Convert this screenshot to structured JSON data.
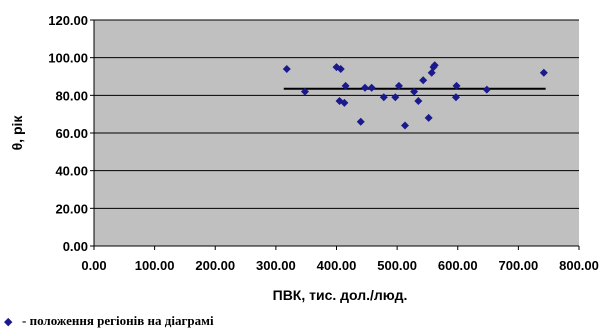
{
  "chart_data": {
    "type": "scatter",
    "title": "",
    "xlabel": "ПВК, тис. дол./люд.",
    "ylabel": "θ, рік",
    "xlim": [
      0,
      800
    ],
    "ylim": [
      0,
      120
    ],
    "xticks": [
      "0.00",
      "100.00",
      "200.00",
      "300.00",
      "400.00",
      "500.00",
      "600.00",
      "700.00",
      "800.00"
    ],
    "yticks": [
      "0.00",
      "20.00",
      "40.00",
      "60.00",
      "80.00",
      "100.00",
      "120.00"
    ],
    "grid": "horizontal",
    "marker_color": "#1a1a8c",
    "background_color": "#c0c0c0",
    "points": [
      {
        "x": 318,
        "y": 94
      },
      {
        "x": 348,
        "y": 82
      },
      {
        "x": 400,
        "y": 95
      },
      {
        "x": 405,
        "y": 77
      },
      {
        "x": 407,
        "y": 94
      },
      {
        "x": 413,
        "y": 76
      },
      {
        "x": 415,
        "y": 85
      },
      {
        "x": 440,
        "y": 66
      },
      {
        "x": 447,
        "y": 84
      },
      {
        "x": 458,
        "y": 84
      },
      {
        "x": 478,
        "y": 79
      },
      {
        "x": 497,
        "y": 79
      },
      {
        "x": 503,
        "y": 85
      },
      {
        "x": 513,
        "y": 64
      },
      {
        "x": 528,
        "y": 82
      },
      {
        "x": 535,
        "y": 77
      },
      {
        "x": 543,
        "y": 88
      },
      {
        "x": 552,
        "y": 68
      },
      {
        "x": 557,
        "y": 92
      },
      {
        "x": 560,
        "y": 95
      },
      {
        "x": 562,
        "y": 96
      },
      {
        "x": 597,
        "y": 79
      },
      {
        "x": 598,
        "y": 85
      },
      {
        "x": 648,
        "y": 83
      },
      {
        "x": 742,
        "y": 92
      }
    ],
    "trend_line": {
      "x": [
        313,
        745
      ],
      "y": [
        83.5,
        83.5
      ],
      "color": "#000000"
    },
    "legend": {
      "marker": "◆",
      "text": "- положення регіонів на діаграмі",
      "position": "bottom-left"
    }
  }
}
